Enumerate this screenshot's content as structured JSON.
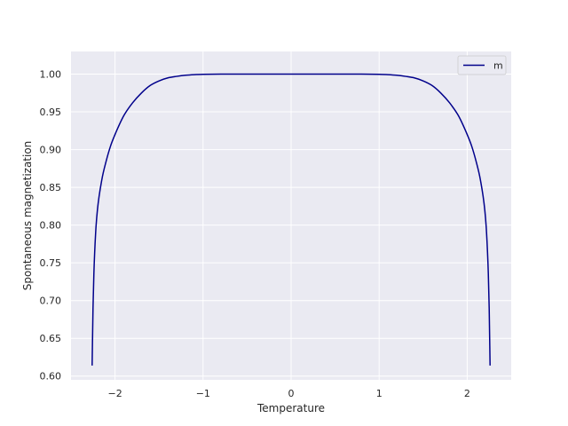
{
  "chart_data": {
    "type": "line",
    "title": "",
    "xlabel": "Temperature",
    "ylabel": "Spontaneous magnetization",
    "xlim": [
      -2.5,
      2.5
    ],
    "ylim": [
      0.595,
      1.03
    ],
    "x_ticks": [
      -2,
      -1,
      0,
      1,
      2
    ],
    "x_tick_labels": [
      "−2",
      "−1",
      "0",
      "1",
      "2"
    ],
    "y_ticks": [
      0.6,
      0.65,
      0.7,
      0.75,
      0.8,
      0.85,
      0.9,
      0.95,
      1.0
    ],
    "y_tick_labels": [
      "0.60",
      "0.65",
      "0.70",
      "0.75",
      "0.80",
      "0.85",
      "0.90",
      "0.95",
      "1.00"
    ],
    "grid": true,
    "legend_position": "top-right",
    "colors": {
      "background": "#eaeaf2",
      "grid": "#ffffff",
      "line": "#00008b"
    },
    "series": [
      {
        "name": "m",
        "x": [
          -2.26,
          -2.25,
          -2.24,
          -2.22,
          -2.2,
          -2.15,
          -2.1,
          -2.05,
          -2.0,
          -1.9,
          -1.8,
          -1.7,
          -1.6,
          -1.5,
          -1.4,
          -1.3,
          -1.2,
          -1.1,
          -1.0,
          -0.8,
          -0.5,
          0.0,
          0.5,
          0.8,
          1.0,
          1.1,
          1.2,
          1.3,
          1.4,
          1.5,
          1.6,
          1.7,
          1.8,
          1.9,
          2.0,
          2.05,
          2.1,
          2.15,
          2.2,
          2.22,
          2.24,
          2.25,
          2.26
        ],
        "y": [
          0.614,
          0.69,
          0.736,
          0.79,
          0.82,
          0.86,
          0.885,
          0.905,
          0.92,
          0.945,
          0.962,
          0.975,
          0.985,
          0.991,
          0.995,
          0.997,
          0.9985,
          0.9993,
          0.9997,
          1.0,
          1.0,
          1.0,
          1.0,
          1.0,
          0.9997,
          0.9993,
          0.9985,
          0.997,
          0.995,
          0.991,
          0.985,
          0.975,
          0.962,
          0.945,
          0.92,
          0.905,
          0.885,
          0.86,
          0.82,
          0.79,
          0.736,
          0.69,
          0.614
        ]
      }
    ]
  }
}
